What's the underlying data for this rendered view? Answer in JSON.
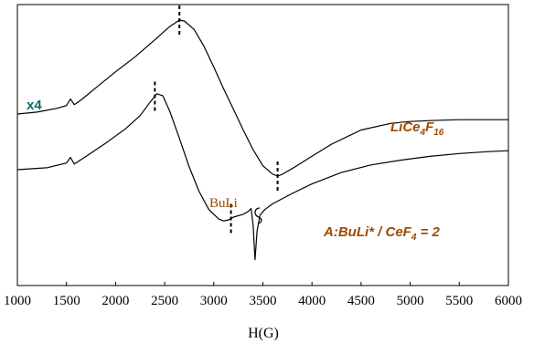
{
  "chart_data": {
    "type": "line",
    "xlabel": "H(G)",
    "ylabel": "",
    "xlim": [
      1000,
      6000
    ],
    "xticks": [
      1000,
      1500,
      2000,
      2500,
      3000,
      3500,
      4000,
      4500,
      5000,
      5500,
      6000
    ],
    "grid": false,
    "y_axis_labeled": false,
    "series": [
      {
        "name": "LiCe4F16",
        "label_main": "LiCe",
        "label_sub1": "4",
        "label_mid": "F",
        "label_sub2": "16",
        "color": "#9c4a00",
        "x": [
          1000,
          1200,
          1400,
          1500,
          1540,
          1580,
          1650,
          1800,
          2000,
          2200,
          2400,
          2550,
          2650,
          2700,
          2800,
          2900,
          3000,
          3100,
          3200,
          3300,
          3400,
          3500,
          3600,
          3650,
          3700,
          3800,
          4000,
          4200,
          4500,
          4800,
          5000,
          5200,
          5500,
          5800,
          6000
        ],
        "y": [
          0.0,
          0.02,
          0.06,
          0.09,
          0.16,
          0.1,
          0.15,
          0.28,
          0.45,
          0.61,
          0.79,
          0.93,
          1.0,
          0.99,
          0.9,
          0.72,
          0.5,
          0.27,
          0.05,
          -0.17,
          -0.38,
          -0.55,
          -0.64,
          -0.66,
          -0.64,
          -0.58,
          -0.45,
          -0.32,
          -0.17,
          -0.1,
          -0.08,
          -0.07,
          -0.06,
          -0.06,
          -0.06
        ]
      },
      {
        "name": "A:BuLi* / CeF4 = 2",
        "label_main": "A:BuLi* / CeF",
        "label_sub": "4",
        "label_tail": " = 2",
        "color": "#9c4a00",
        "x": [
          1000,
          1300,
          1500,
          1540,
          1580,
          1700,
          1900,
          2100,
          2250,
          2350,
          2420,
          2480,
          2550,
          2650,
          2750,
          2850,
          2950,
          3050,
          3100,
          3150,
          3200,
          3300,
          3350,
          3380,
          3400,
          3420,
          3440,
          3470,
          3520,
          3600,
          3800,
          4000,
          4300,
          4600,
          4900,
          5200,
          5500,
          5800,
          6000
        ],
        "y": [
          0.0,
          0.02,
          0.07,
          0.13,
          0.06,
          0.14,
          0.28,
          0.43,
          0.57,
          0.71,
          0.8,
          0.78,
          0.62,
          0.33,
          0.03,
          -0.23,
          -0.42,
          -0.52,
          -0.54,
          -0.53,
          -0.5,
          -0.47,
          -0.44,
          -0.41,
          -0.58,
          -0.95,
          -0.65,
          -0.48,
          -0.42,
          -0.36,
          -0.25,
          -0.15,
          -0.03,
          0.05,
          0.1,
          0.14,
          0.17,
          0.19,
          0.2
        ]
      }
    ],
    "annotations": [
      {
        "text": "x4",
        "color": "#0c6a6a",
        "target": "series 1 offset"
      },
      {
        "text": "BuLi",
        "color": "#9c4a00",
        "target": "series 2 narrow feature near 3420 G"
      }
    ],
    "peak_markers": [
      {
        "series": 0,
        "x": 2650
      },
      {
        "series": 0,
        "x": 3650
      },
      {
        "series": 1,
        "x": 2400
      },
      {
        "series": 1,
        "x": 3175
      }
    ]
  }
}
